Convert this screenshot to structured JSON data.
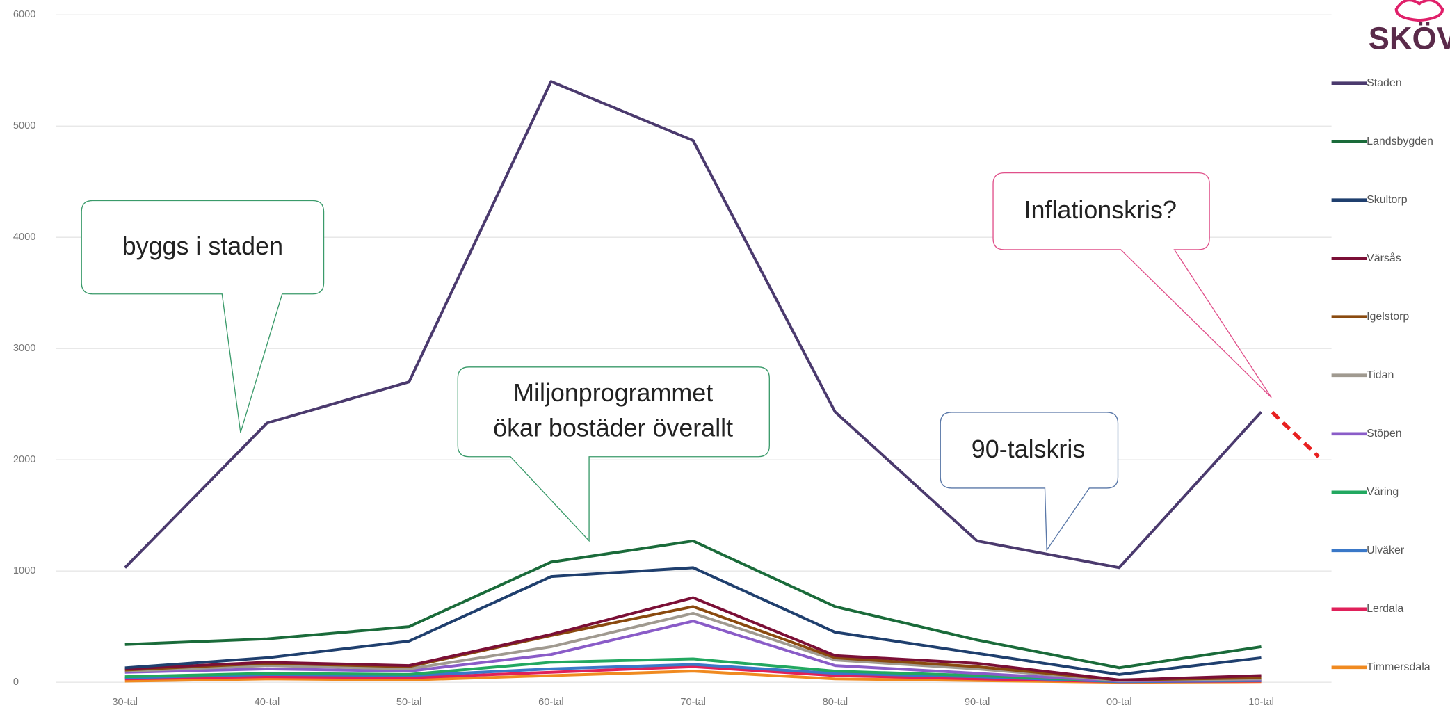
{
  "chart_data": {
    "type": "line",
    "categories": [
      "30-tal",
      "40-tal",
      "50-tal",
      "60-tal",
      "70-tal",
      "80-tal",
      "90-tal",
      "00-tal",
      "10-tal"
    ],
    "ylim": [
      0,
      6000
    ],
    "yticks": [
      0,
      1000,
      2000,
      3000,
      4000,
      5000,
      6000
    ],
    "grid": true,
    "legend": "right",
    "series": [
      {
        "name": "Staden",
        "color": "#4b3a6e",
        "values": [
          1030,
          2330,
          2700,
          5400,
          4870,
          2430,
          1270,
          1030,
          2430
        ]
      },
      {
        "name": "Landsbygden",
        "color": "#1a6b3a",
        "values": [
          340,
          390,
          500,
          1080,
          1270,
          680,
          380,
          130,
          320
        ]
      },
      {
        "name": "Skultorp",
        "color": "#1f3f6e",
        "values": [
          130,
          220,
          370,
          950,
          1030,
          450,
          260,
          70,
          220
        ]
      },
      {
        "name": "Värsås",
        "color": "#7b0f36",
        "values": [
          120,
          180,
          150,
          430,
          760,
          240,
          170,
          20,
          60
        ]
      },
      {
        "name": "Igelstorp",
        "color": "#8a4a0f",
        "values": [
          110,
          170,
          140,
          420,
          680,
          220,
          140,
          20,
          40
        ]
      },
      {
        "name": "Tidan",
        "color": "#a09a90",
        "values": [
          100,
          150,
          120,
          320,
          620,
          200,
          120,
          15,
          30
        ]
      },
      {
        "name": "Stöpen",
        "color": "#8a5cc8",
        "values": [
          90,
          120,
          100,
          250,
          550,
          150,
          80,
          10,
          20
        ]
      },
      {
        "name": "Väring",
        "color": "#22a860",
        "values": [
          50,
          80,
          70,
          180,
          210,
          100,
          60,
          10,
          20
        ]
      },
      {
        "name": "Ulväker",
        "color": "#3a78c8",
        "values": [
          40,
          70,
          60,
          120,
          160,
          80,
          50,
          5,
          15
        ]
      },
      {
        "name": "Lerdala",
        "color": "#e0205a",
        "values": [
          30,
          50,
          40,
          90,
          140,
          60,
          30,
          5,
          10
        ]
      },
      {
        "name": "Timmersdala",
        "color": "#f08a20",
        "values": [
          10,
          30,
          20,
          60,
          100,
          30,
          15,
          0,
          5
        ]
      }
    ],
    "annotations": [
      "byggs i staden",
      "Miljonprogrammet",
      "ökar bostäder överallt",
      "90-talskris",
      "Inflationskris?"
    ],
    "logo_text": "SKÖV"
  }
}
